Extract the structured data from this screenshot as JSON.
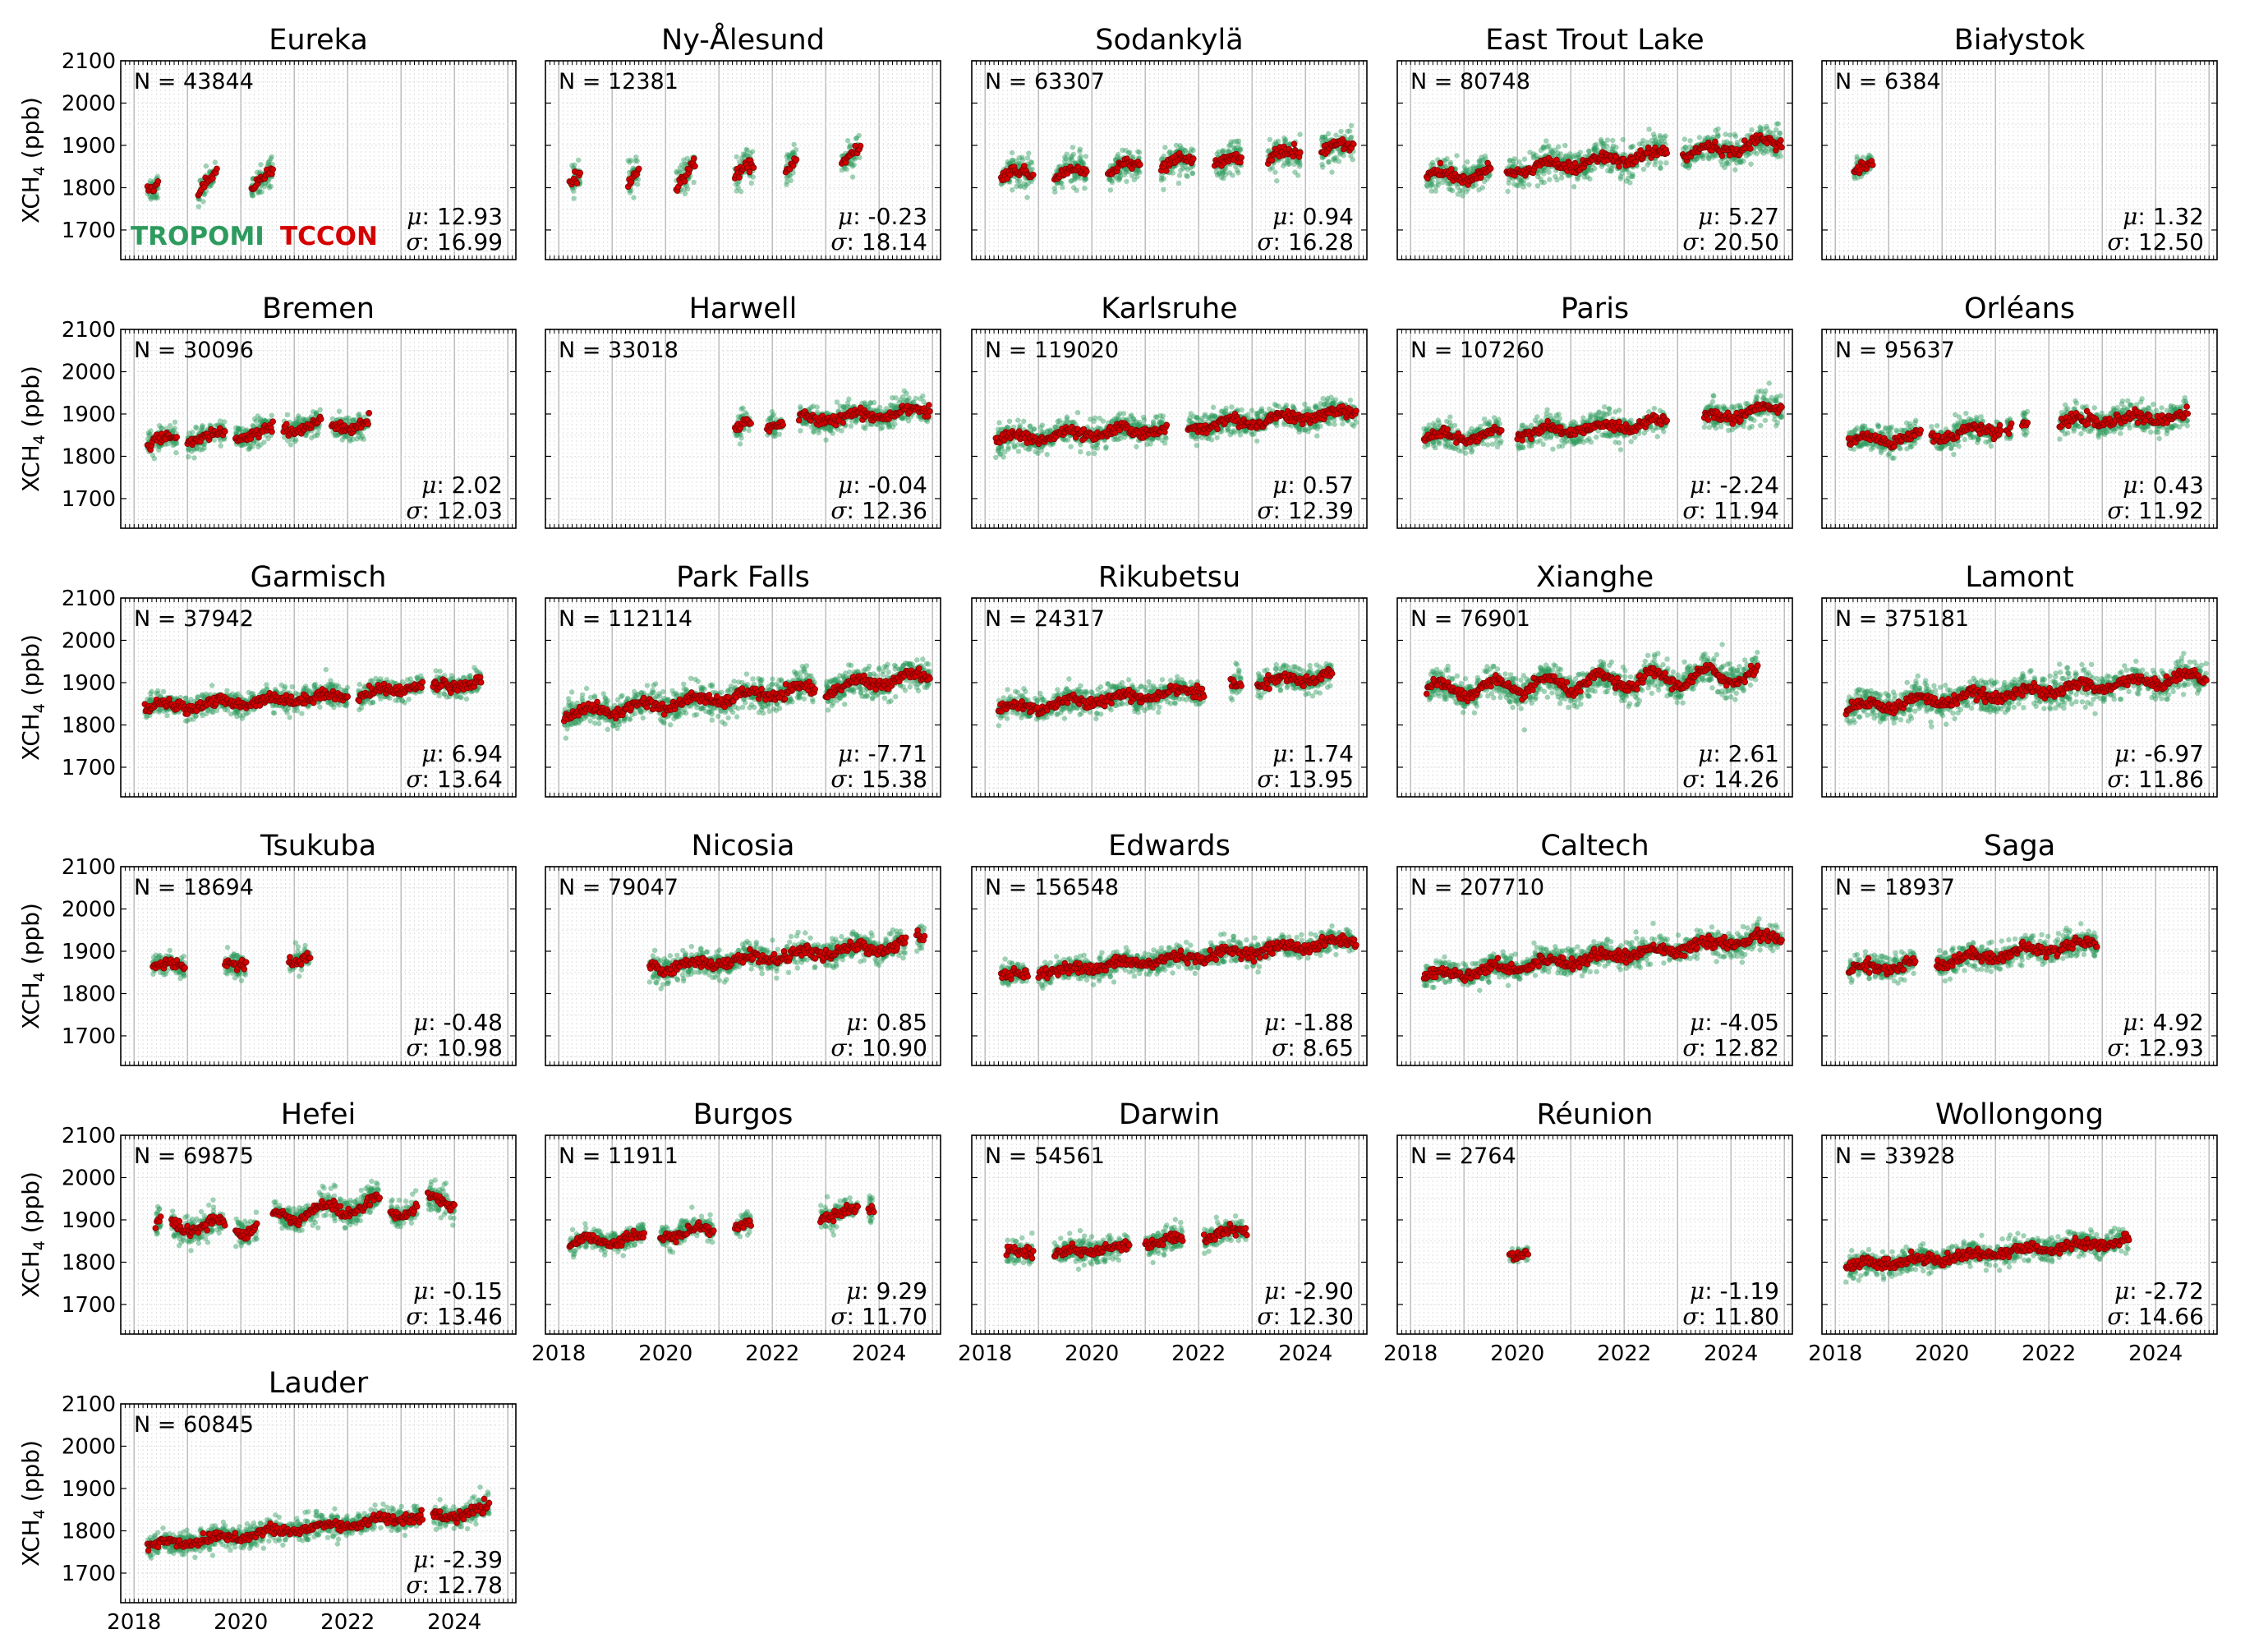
{
  "figure": {
    "y_axis_label": "XCH",
    "y_axis_label_sub": "4",
    "y_axis_label_unit": " (ppb)",
    "legend": [
      {
        "label": "TROPOMI",
        "color": "#2e9b5e"
      },
      {
        "label": "TCCON",
        "color": "#d40000"
      }
    ],
    "colors": {
      "tropomi": "#2e9b5e",
      "tccon": "#d40000",
      "tccon_edge": "#7a0000"
    }
  },
  "chart_data": {
    "type": "scatter",
    "ylim": [
      1630,
      2100
    ],
    "yticks": [
      1700,
      1800,
      1900,
      2000,
      2100
    ],
    "xlim": [
      2017.75,
      2025.15
    ],
    "xticks": [
      2018,
      2020,
      2022,
      2024
    ],
    "grid": true,
    "series_names": [
      "TROPOMI",
      "TCCON"
    ],
    "panels": [
      {
        "site": "Eureka",
        "n": "N = 43844",
        "mu": "12.93",
        "sigma": "16.99",
        "segments": [
          [
            2018.25,
            2018.45,
            1795,
            1795
          ],
          [
            2019.2,
            2019.55,
            1795,
            1820
          ],
          [
            2020.2,
            2020.6,
            1800,
            1830
          ]
        ],
        "amp": 22,
        "spread": 50
      },
      {
        "site": "Ny-Ålesund",
        "n": "N = 12381",
        "mu": "-0.23",
        "sigma": "18.14",
        "segments": [
          [
            2018.2,
            2018.4,
            1815,
            1825
          ],
          [
            2019.3,
            2019.5,
            1810,
            1830
          ],
          [
            2020.2,
            2020.55,
            1805,
            1845
          ],
          [
            2021.3,
            2021.65,
            1825,
            1845
          ],
          [
            2022.25,
            2022.45,
            1840,
            1860
          ],
          [
            2023.3,
            2023.65,
            1850,
            1885
          ]
        ],
        "amp": 20,
        "spread": 60
      },
      {
        "site": "Sodankylä",
        "n": "N = 63307",
        "mu": "0.94",
        "sigma": "16.28",
        "segments": [
          [
            2018.3,
            2018.9,
            1825,
            1835
          ],
          [
            2019.3,
            2019.9,
            1820,
            1840
          ],
          [
            2020.3,
            2020.9,
            1830,
            1860
          ],
          [
            2021.3,
            2021.9,
            1840,
            1870
          ],
          [
            2022.3,
            2022.8,
            1850,
            1870
          ],
          [
            2023.3,
            2023.9,
            1865,
            1885
          ],
          [
            2024.3,
            2024.9,
            1880,
            1905
          ]
        ],
        "amp": 20,
        "spread": 60
      },
      {
        "site": "East Trout Lake",
        "n": "N = 80748",
        "mu": "5.27",
        "sigma": "20.50",
        "segments": [
          [
            2018.3,
            2019.5,
            1825,
            1835
          ],
          [
            2019.8,
            2022.8,
            1840,
            1880
          ],
          [
            2023.1,
            2024.95,
            1880,
            1910
          ]
        ],
        "amp": 18,
        "spread": 55
      },
      {
        "site": "Białystok",
        "n": "N = 6384",
        "mu": "1.32",
        "sigma": "12.50",
        "segments": [
          [
            2018.35,
            2018.7,
            1835,
            1850
          ]
        ],
        "amp": 15,
        "spread": 40
      },
      {
        "site": "Bremen",
        "n": "N = 30096",
        "mu": "2.02",
        "sigma": "12.03",
        "segments": [
          [
            2018.25,
            2018.8,
            1830,
            1840
          ],
          [
            2019.0,
            2019.7,
            1840,
            1850
          ],
          [
            2019.9,
            2020.6,
            1850,
            1862
          ],
          [
            2020.8,
            2021.5,
            1865,
            1875
          ],
          [
            2021.7,
            2022.4,
            1868,
            1878
          ]
        ],
        "amp": 15,
        "spread": 45
      },
      {
        "site": "Harwell",
        "n": "N = 33018",
        "mu": "-0.04",
        "sigma": "12.36",
        "segments": [
          [
            2021.3,
            2021.6,
            1865,
            1875
          ],
          [
            2021.9,
            2022.2,
            1875,
            1885
          ],
          [
            2022.5,
            2024.95,
            1885,
            1910
          ]
        ],
        "amp": 15,
        "spread": 45
      },
      {
        "site": "Karlsruhe",
        "n": "N = 119020",
        "mu": "0.57",
        "sigma": "12.39",
        "segments": [
          [
            2018.2,
            2021.4,
            1840,
            1865
          ],
          [
            2021.8,
            2024.95,
            1870,
            1905
          ]
        ],
        "amp": 15,
        "spread": 45
      },
      {
        "site": "Paris",
        "n": "N = 107260",
        "mu": "-2.24",
        "sigma": "11.94",
        "segments": [
          [
            2018.25,
            2019.7,
            1845,
            1850
          ],
          [
            2020.0,
            2022.8,
            1855,
            1880
          ],
          [
            2023.5,
            2024.95,
            1890,
            1915
          ]
        ],
        "amp": 15,
        "spread": 45
      },
      {
        "site": "Orléans",
        "n": "N = 95637",
        "mu": "0.43",
        "sigma": "11.92",
        "segments": [
          [
            2018.25,
            2019.6,
            1835,
            1845
          ],
          [
            2019.8,
            2021.1,
            1845,
            1870
          ],
          [
            2021.2,
            2021.3,
            1868,
            1870
          ],
          [
            2021.5,
            2021.6,
            1870,
            1872
          ],
          [
            2022.2,
            2024.6,
            1880,
            1895
          ]
        ],
        "amp": 15,
        "spread": 45
      },
      {
        "site": "Garmisch",
        "n": "N = 37942",
        "mu": "6.94",
        "sigma": "13.64",
        "segments": [
          [
            2018.2,
            2022.0,
            1840,
            1870
          ],
          [
            2022.2,
            2023.4,
            1870,
            1895
          ],
          [
            2023.6,
            2024.5,
            1890,
            1900
          ]
        ],
        "amp": 12,
        "spread": 40
      },
      {
        "site": "Park Falls",
        "n": "N = 112114",
        "mu": "-7.71",
        "sigma": "15.38",
        "segments": [
          [
            2018.1,
            2022.8,
            1825,
            1885
          ],
          [
            2023.0,
            2024.95,
            1885,
            1920
          ]
        ],
        "amp": 18,
        "spread": 55
      },
      {
        "site": "Rikubetsu",
        "n": "N = 24317",
        "mu": "1.74",
        "sigma": "13.95",
        "segments": [
          [
            2018.25,
            2022.1,
            1835,
            1885
          ],
          [
            2022.6,
            2022.8,
            1890,
            1895
          ],
          [
            2023.1,
            2024.5,
            1900,
            1915
          ]
        ],
        "amp": 15,
        "spread": 45
      },
      {
        "site": "Xianghe",
        "n": "N = 76901",
        "mu": "2.61",
        "sigma": "14.26",
        "segments": [
          [
            2018.3,
            2024.5,
            1880,
            1920
          ]
        ],
        "amp": 30,
        "spread": 55
      },
      {
        "site": "Lamont",
        "n": "N = 375181",
        "mu": "-6.97",
        "sigma": "11.86",
        "segments": [
          [
            2018.2,
            2024.95,
            1840,
            1915
          ]
        ],
        "amp": 18,
        "spread": 55
      },
      {
        "site": "Tsukuba",
        "n": "N = 18694",
        "mu": "-0.48",
        "sigma": "10.98",
        "segments": [
          [
            2018.35,
            2018.95,
            1860,
            1870
          ],
          [
            2019.7,
            2020.1,
            1870,
            1875
          ],
          [
            2020.9,
            2021.3,
            1880,
            1890
          ]
        ],
        "amp": 12,
        "spread": 40
      },
      {
        "site": "Nicosia",
        "n": "N = 79047",
        "mu": "0.85",
        "sigma": "10.90",
        "segments": [
          [
            2019.7,
            2024.5,
            1860,
            1915
          ],
          [
            2024.7,
            2024.85,
            1930,
            1935
          ]
        ],
        "amp": 14,
        "spread": 45
      },
      {
        "site": "Edwards",
        "n": "N = 156548",
        "mu": "-1.88",
        "sigma": "8.65",
        "segments": [
          [
            2018.3,
            2018.8,
            1840,
            1845
          ],
          [
            2019.0,
            2024.95,
            1850,
            1925
          ]
        ],
        "amp": 12,
        "spread": 40
      },
      {
        "site": "Caltech",
        "n": "N = 207710",
        "mu": "-4.05",
        "sigma": "12.82",
        "segments": [
          [
            2018.25,
            2024.95,
            1840,
            1935
          ]
        ],
        "amp": 14,
        "spread": 45
      },
      {
        "site": "Saga",
        "n": "N = 18937",
        "mu": "4.92",
        "sigma": "12.93",
        "segments": [
          [
            2018.25,
            2019.5,
            1855,
            1870
          ],
          [
            2019.9,
            2022.9,
            1875,
            1920
          ]
        ],
        "amp": 15,
        "spread": 45
      },
      {
        "site": "Hefei",
        "n": "N = 69875",
        "mu": "-0.15",
        "sigma": "13.46",
        "segments": [
          [
            2018.4,
            2018.5,
            1880,
            1885
          ],
          [
            2018.7,
            2019.7,
            1885,
            1885
          ],
          [
            2019.9,
            2020.3,
            1880,
            1885
          ],
          [
            2020.6,
            2022.6,
            1905,
            1940
          ],
          [
            2022.8,
            2023.3,
            1920,
            1930
          ],
          [
            2023.5,
            2024.0,
            1940,
            1945
          ]
        ],
        "amp": 25,
        "spread": 50
      },
      {
        "site": "Burgos",
        "n": "N = 11911",
        "mu": "9.29",
        "sigma": "11.70",
        "segments": [
          [
            2018.2,
            2019.6,
            1845,
            1860
          ],
          [
            2019.9,
            2020.9,
            1865,
            1880
          ],
          [
            2021.3,
            2021.6,
            1880,
            1885
          ],
          [
            2022.9,
            2023.6,
            1915,
            1920
          ],
          [
            2023.8,
            2023.9,
            1925,
            1928
          ]
        ],
        "amp": 15,
        "spread": 40
      },
      {
        "site": "Darwin",
        "n": "N = 54561",
        "mu": "-2.90",
        "sigma": "12.30",
        "segments": [
          [
            2018.4,
            2018.9,
            1820,
            1822
          ],
          [
            2019.3,
            2020.7,
            1820,
            1838
          ],
          [
            2021.0,
            2021.7,
            1845,
            1855
          ],
          [
            2022.1,
            2022.9,
            1860,
            1875
          ]
        ],
        "amp": 10,
        "spread": 45
      },
      {
        "site": "Réunion",
        "n": "N = 2764",
        "mu": "-1.19",
        "sigma": "11.80",
        "segments": [
          [
            2019.85,
            2020.2,
            1818,
            1822
          ]
        ],
        "amp": 5,
        "spread": 30
      },
      {
        "site": "Wollongong",
        "n": "N = 33928",
        "mu": "-2.72",
        "sigma": "14.66",
        "segments": [
          [
            2018.2,
            2023.5,
            1790,
            1850
          ]
        ],
        "amp": 10,
        "spread": 40
      },
      {
        "site": "Lauder",
        "n": "N = 60845",
        "mu": "-2.39",
        "sigma": "12.78",
        "segments": [
          [
            2018.25,
            2023.4,
            1765,
            1835
          ],
          [
            2023.6,
            2024.65,
            1830,
            1850
          ]
        ],
        "amp": 10,
        "spread": 40
      }
    ]
  }
}
